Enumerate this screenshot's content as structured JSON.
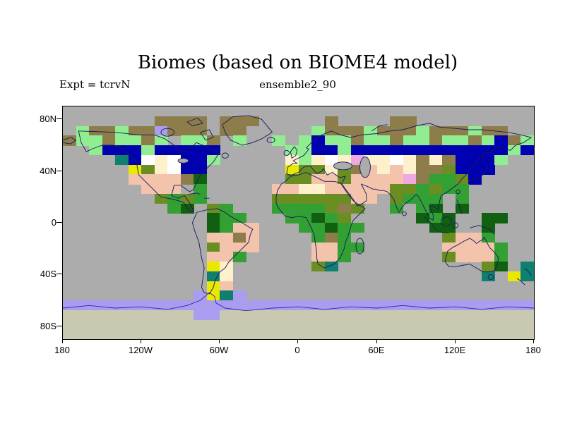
{
  "title": "Biomes (based on BIOME4 model)",
  "subtitle_left": "Expt = tcrvN",
  "subtitle_center": "ensemble2_90",
  "axes": {
    "y_ticks": [
      "80N",
      "40N",
      "0",
      "40S",
      "80S"
    ],
    "x_ticks": [
      "180",
      "120W",
      "60W",
      "0",
      "60E",
      "120E",
      "180"
    ]
  },
  "map": {
    "ocean_color": "#ACACAC",
    "coast_color": "#1A1A60",
    "antarctic_coast_color": "#2A2AB4",
    "grid": {
      "cols": 36,
      "rows": 24,
      "palette": {
        "B": "#0000B0",
        "g": "#90EE90",
        "k": "#8C7D4B",
        "s": "#F3C3AC",
        "c": "#FFF0CC",
        "w": "#FFFFFF",
        "y": "#E8E800",
        "o": "#6B8E23",
        "G": "#33A033",
        "d": "#115F11",
        "t": "#0F7F6F",
        "p": "#AA9CEE",
        "m": "#F0A8E0",
        "a": "#C9C9B2"
      },
      "rows_data": [
        "....................................",
        ".......kkkk.kkk.....k....kk.........",
        ".gkkgkkpkkk.kk.....gkkkgkkkgkkkgkk..",
        "kggkggkg.ggk.g..g.gBggkggkggkggkgBkg",
        "..gBBBgBBBBB.....ggBBgBBBBBBBBBBBBgB",
        "....tBwcwBBg.....cgcwcmccwckckBBBg..",
        ".....yocwBB......yoocokscsckkoBBB...",
        ".....sssskd......oossossssmkGGoB....",
        "......sss.G.....ssccsssssooGoGG.....",
        ".......oGoG.....ooooooss.oGGG.G.....",
        "........Gd.oG...GGGGoko..G.Gd.d.....",
        "...........dGG...GGdGo.....dGd..dd..",
        "...........dGss...GGdGG.....dd..d...",
        "...........ssks....GkG.......ossG...",
        "...........osss....ssGG......ssssG..",
        "...........ssG.....ssG.......osssG..",
        "...........yc......ot...........od.t",
        "...........tc...................t.yt",
        "...........ys.......................",
        "..........pytp......................",
        "pppppppppppppppppppppppppppppppppppp",
        "aaaaaaaaaappaaaaaaaaaaaaaaaaaaaaaaaa",
        "aaaaaaaaaaaaaaaaaaaaaaaaaaaaaaaaaaaa",
        "aaaaaaaaaaaaaaaaaaaaaaaaaaaaaaaaaaaa"
      ]
    }
  }
}
